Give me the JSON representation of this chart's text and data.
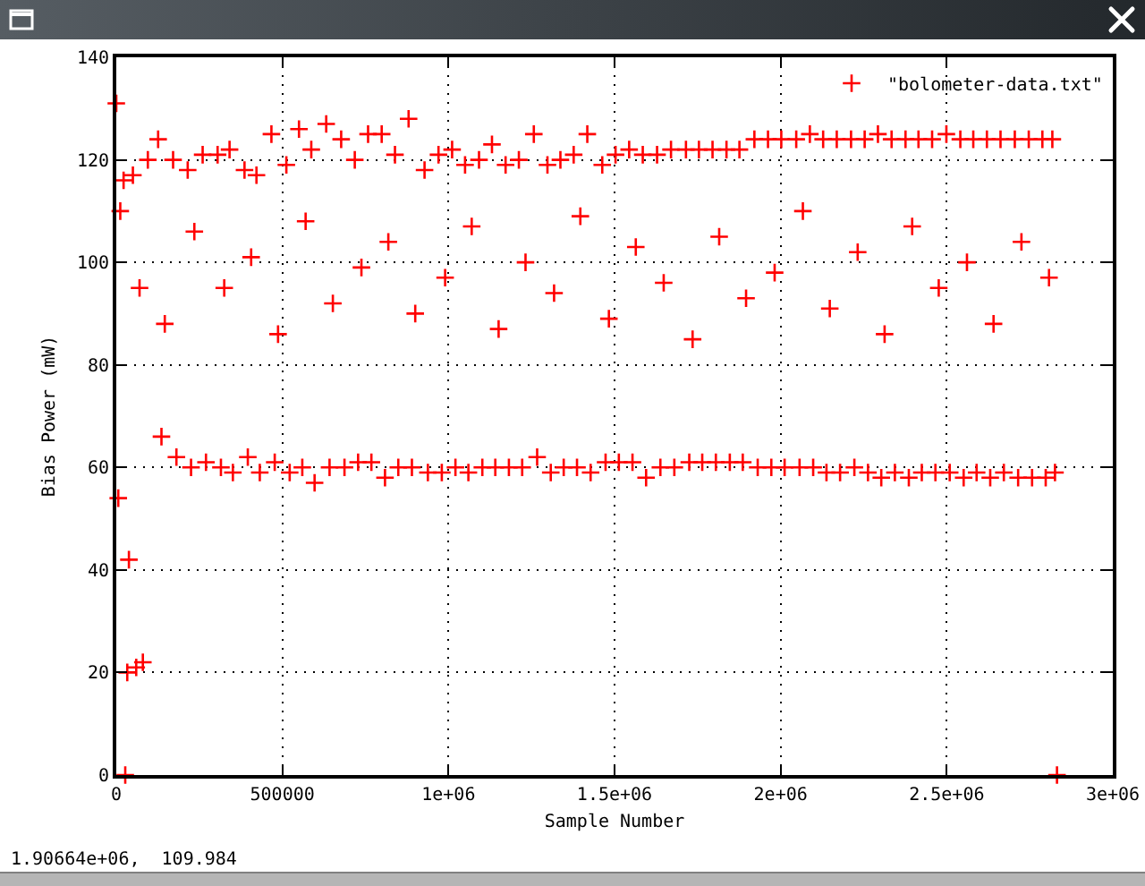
{
  "chart_data": {
    "type": "scatter",
    "xlabel": "Sample Number",
    "ylabel": "Bias Power (mW)",
    "series": [
      {
        "name": "\"bolometer-data.txt\"",
        "color": "#ff0000",
        "x": [
          0,
          6000,
          12000,
          22000,
          27000,
          33000,
          38000,
          50000,
          60000,
          70000,
          80000,
          95000,
          126000,
          136000,
          146000,
          171000,
          181000,
          215000,
          225000,
          235000,
          260000,
          270000,
          305000,
          315000,
          325000,
          341000,
          351000,
          386000,
          396000,
          406000,
          422000,
          432000,
          467000,
          477000,
          487000,
          512000,
          522000,
          550000,
          560000,
          570000,
          587000,
          597000,
          632000,
          642000,
          652000,
          677000,
          687000,
          718000,
          728000,
          738000,
          758000,
          768000,
          799000,
          809000,
          819000,
          839000,
          849000,
          880000,
          890000,
          900000,
          928000,
          938000,
          970000,
          980000,
          990000,
          1011000,
          1021000,
          1050000,
          1060000,
          1070000,
          1092000,
          1102000,
          1131000,
          1141000,
          1151000,
          1172000,
          1182000,
          1212000,
          1222000,
          1232000,
          1257000,
          1267000,
          1298000,
          1308000,
          1318000,
          1337000,
          1347000,
          1377000,
          1387000,
          1397000,
          1418000,
          1428000,
          1463000,
          1473000,
          1483000,
          1503000,
          1513000,
          1544000,
          1554000,
          1564000,
          1585000,
          1595000,
          1628000,
          1638000,
          1648000,
          1670000,
          1680000,
          1715000,
          1725000,
          1735000,
          1754000,
          1764000,
          1795000,
          1805000,
          1815000,
          1837000,
          1847000,
          1876000,
          1886000,
          1896000,
          1921000,
          1931000,
          1962000,
          1972000,
          1982000,
          2002000,
          2012000,
          2047000,
          2057000,
          2067000,
          2088000,
          2098000,
          2128000,
          2138000,
          2148000,
          2169000,
          2179000,
          2212000,
          2222000,
          2232000,
          2253000,
          2263000,
          2293000,
          2303000,
          2313000,
          2334000,
          2344000,
          2376000,
          2386000,
          2396000,
          2415000,
          2425000,
          2456000,
          2466000,
          2476000,
          2499000,
          2509000,
          2541000,
          2551000,
          2561000,
          2580000,
          2590000,
          2621000,
          2631000,
          2641000,
          2662000,
          2672000,
          2705000,
          2715000,
          2725000,
          2747000,
          2757000,
          2788000,
          2798000,
          2808000,
          2818000,
          2826000,
          2832000
        ],
        "values": [
          131,
          54,
          110,
          116,
          0,
          20,
          42,
          117,
          21,
          95,
          22,
          120,
          124,
          66,
          88,
          120,
          62,
          118,
          60,
          106,
          121,
          61,
          121,
          60,
          95,
          122,
          59,
          118,
          62,
          101,
          117,
          59,
          125,
          61,
          86,
          119,
          59,
          126,
          60,
          108,
          122,
          57,
          127,
          60,
          92,
          124,
          60,
          120,
          61,
          99,
          125,
          61,
          125,
          58,
          104,
          121,
          60,
          128,
          60,
          90,
          118,
          59,
          121,
          59,
          97,
          122,
          60,
          119,
          59,
          107,
          120,
          60,
          123,
          60,
          87,
          119,
          60,
          120,
          60,
          100,
          125,
          62,
          119,
          59,
          94,
          120,
          60,
          121,
          60,
          109,
          125,
          59,
          119,
          61,
          89,
          121,
          61,
          122,
          61,
          103,
          121,
          58,
          121,
          60,
          96,
          122,
          60,
          122,
          61,
          85,
          122,
          61,
          122,
          61,
          105,
          122,
          61,
          122,
          61,
          93,
          124,
          60,
          124,
          60,
          98,
          124,
          60,
          124,
          60,
          110,
          125,
          60,
          124,
          59,
          91,
          124,
          59,
          124,
          60,
          102,
          124,
          59,
          125,
          58,
          86,
          124,
          59,
          124,
          58,
          107,
          124,
          59,
          124,
          59,
          95,
          125,
          59,
          124,
          58,
          100,
          124,
          59,
          124,
          58,
          88,
          124,
          59,
          124,
          58,
          104,
          124,
          58,
          124,
          58,
          97,
          124,
          59,
          0
        ]
      }
    ],
    "xlim": [
      0,
      3000000
    ],
    "xticks": [
      0,
      500000,
      {
        "value": 1000000,
        "label": "1e+06"
      },
      {
        "value": 1500000,
        "label": "1.5e+06"
      },
      {
        "value": 2000000,
        "label": "2e+06"
      },
      {
        "value": 2500000,
        "label": "2.5e+06"
      },
      {
        "value": 3000000,
        "label": "3e+06"
      }
    ],
    "ylim": [
      0,
      140
    ],
    "yticks": [
      0,
      20,
      40,
      60,
      80,
      100,
      120,
      140
    ],
    "grid": true,
    "legend": "top right",
    "marker": "cross",
    "annotations": [
      "1.90664e+06,  109.984"
    ]
  }
}
